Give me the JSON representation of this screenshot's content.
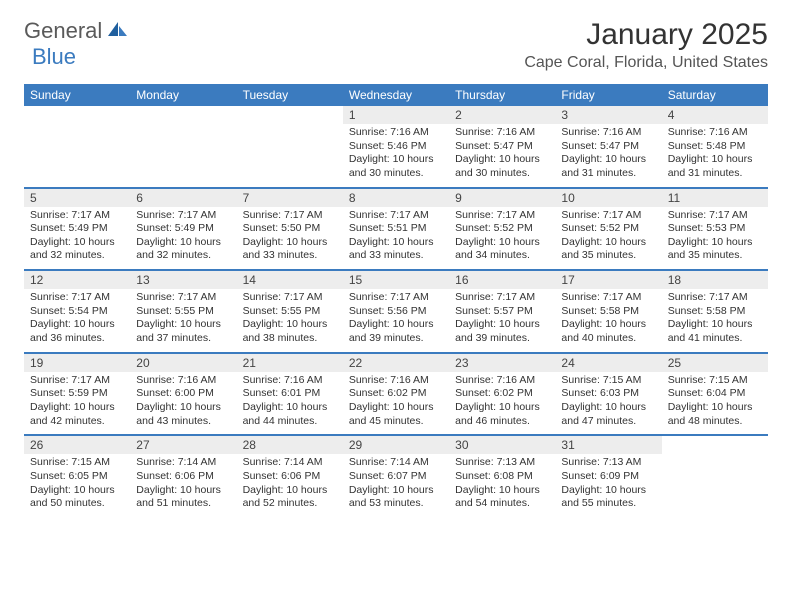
{
  "brand": {
    "part1": "General",
    "part2": "Blue"
  },
  "title": "January 2025",
  "location": "Cape Coral, Florida, United States",
  "colors": {
    "header_bg": "#3b7bbf",
    "daynum_bg": "#ededed",
    "text": "#333333",
    "brand_gray": "#5a5a5a",
    "brand_blue": "#3b7bbf"
  },
  "day_names": [
    "Sunday",
    "Monday",
    "Tuesday",
    "Wednesday",
    "Thursday",
    "Friday",
    "Saturday"
  ],
  "weeks": [
    [
      {
        "blank": true
      },
      {
        "blank": true
      },
      {
        "blank": true
      },
      {
        "n": "1",
        "sunrise": "7:16 AM",
        "sunset": "5:46 PM",
        "daylight": "10 hours and 30 minutes."
      },
      {
        "n": "2",
        "sunrise": "7:16 AM",
        "sunset": "5:47 PM",
        "daylight": "10 hours and 30 minutes."
      },
      {
        "n": "3",
        "sunrise": "7:16 AM",
        "sunset": "5:47 PM",
        "daylight": "10 hours and 31 minutes."
      },
      {
        "n": "4",
        "sunrise": "7:16 AM",
        "sunset": "5:48 PM",
        "daylight": "10 hours and 31 minutes."
      }
    ],
    [
      {
        "n": "5",
        "sunrise": "7:17 AM",
        "sunset": "5:49 PM",
        "daylight": "10 hours and 32 minutes."
      },
      {
        "n": "6",
        "sunrise": "7:17 AM",
        "sunset": "5:49 PM",
        "daylight": "10 hours and 32 minutes."
      },
      {
        "n": "7",
        "sunrise": "7:17 AM",
        "sunset": "5:50 PM",
        "daylight": "10 hours and 33 minutes."
      },
      {
        "n": "8",
        "sunrise": "7:17 AM",
        "sunset": "5:51 PM",
        "daylight": "10 hours and 33 minutes."
      },
      {
        "n": "9",
        "sunrise": "7:17 AM",
        "sunset": "5:52 PM",
        "daylight": "10 hours and 34 minutes."
      },
      {
        "n": "10",
        "sunrise": "7:17 AM",
        "sunset": "5:52 PM",
        "daylight": "10 hours and 35 minutes."
      },
      {
        "n": "11",
        "sunrise": "7:17 AM",
        "sunset": "5:53 PM",
        "daylight": "10 hours and 35 minutes."
      }
    ],
    [
      {
        "n": "12",
        "sunrise": "7:17 AM",
        "sunset": "5:54 PM",
        "daylight": "10 hours and 36 minutes."
      },
      {
        "n": "13",
        "sunrise": "7:17 AM",
        "sunset": "5:55 PM",
        "daylight": "10 hours and 37 minutes."
      },
      {
        "n": "14",
        "sunrise": "7:17 AM",
        "sunset": "5:55 PM",
        "daylight": "10 hours and 38 minutes."
      },
      {
        "n": "15",
        "sunrise": "7:17 AM",
        "sunset": "5:56 PM",
        "daylight": "10 hours and 39 minutes."
      },
      {
        "n": "16",
        "sunrise": "7:17 AM",
        "sunset": "5:57 PM",
        "daylight": "10 hours and 39 minutes."
      },
      {
        "n": "17",
        "sunrise": "7:17 AM",
        "sunset": "5:58 PM",
        "daylight": "10 hours and 40 minutes."
      },
      {
        "n": "18",
        "sunrise": "7:17 AM",
        "sunset": "5:58 PM",
        "daylight": "10 hours and 41 minutes."
      }
    ],
    [
      {
        "n": "19",
        "sunrise": "7:17 AM",
        "sunset": "5:59 PM",
        "daylight": "10 hours and 42 minutes."
      },
      {
        "n": "20",
        "sunrise": "7:16 AM",
        "sunset": "6:00 PM",
        "daylight": "10 hours and 43 minutes."
      },
      {
        "n": "21",
        "sunrise": "7:16 AM",
        "sunset": "6:01 PM",
        "daylight": "10 hours and 44 minutes."
      },
      {
        "n": "22",
        "sunrise": "7:16 AM",
        "sunset": "6:02 PM",
        "daylight": "10 hours and 45 minutes."
      },
      {
        "n": "23",
        "sunrise": "7:16 AM",
        "sunset": "6:02 PM",
        "daylight": "10 hours and 46 minutes."
      },
      {
        "n": "24",
        "sunrise": "7:15 AM",
        "sunset": "6:03 PM",
        "daylight": "10 hours and 47 minutes."
      },
      {
        "n": "25",
        "sunrise": "7:15 AM",
        "sunset": "6:04 PM",
        "daylight": "10 hours and 48 minutes."
      }
    ],
    [
      {
        "n": "26",
        "sunrise": "7:15 AM",
        "sunset": "6:05 PM",
        "daylight": "10 hours and 50 minutes."
      },
      {
        "n": "27",
        "sunrise": "7:14 AM",
        "sunset": "6:06 PM",
        "daylight": "10 hours and 51 minutes."
      },
      {
        "n": "28",
        "sunrise": "7:14 AM",
        "sunset": "6:06 PM",
        "daylight": "10 hours and 52 minutes."
      },
      {
        "n": "29",
        "sunrise": "7:14 AM",
        "sunset": "6:07 PM",
        "daylight": "10 hours and 53 minutes."
      },
      {
        "n": "30",
        "sunrise": "7:13 AM",
        "sunset": "6:08 PM",
        "daylight": "10 hours and 54 minutes."
      },
      {
        "n": "31",
        "sunrise": "7:13 AM",
        "sunset": "6:09 PM",
        "daylight": "10 hours and 55 minutes."
      },
      {
        "blank": true
      }
    ]
  ],
  "labels": {
    "sunrise": "Sunrise:",
    "sunset": "Sunset:",
    "daylight": "Daylight:"
  }
}
